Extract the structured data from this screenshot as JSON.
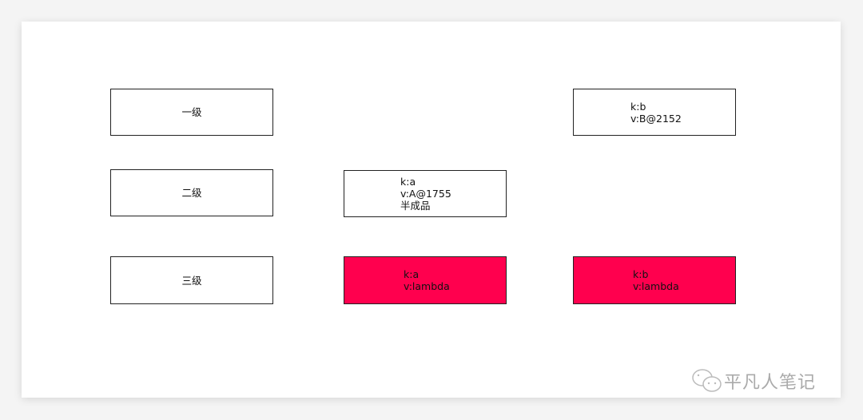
{
  "levels": {
    "l1": "一级",
    "l2": "二级",
    "l3": "三级"
  },
  "cache_l1_b": {
    "k": "k:b",
    "v": "v:B@2152"
  },
  "cache_l2_a": {
    "k": "k:a",
    "v": "v:A@1755",
    "note": "半成品"
  },
  "cache_l3_a": {
    "k": "k:a",
    "v": "v:lambda"
  },
  "cache_l3_b": {
    "k": "k:b",
    "v": "v:lambda"
  },
  "colors": {
    "highlight": "#ff004e"
  },
  "watermark": {
    "text": "平凡人笔记",
    "icon": "wechat-icon"
  }
}
